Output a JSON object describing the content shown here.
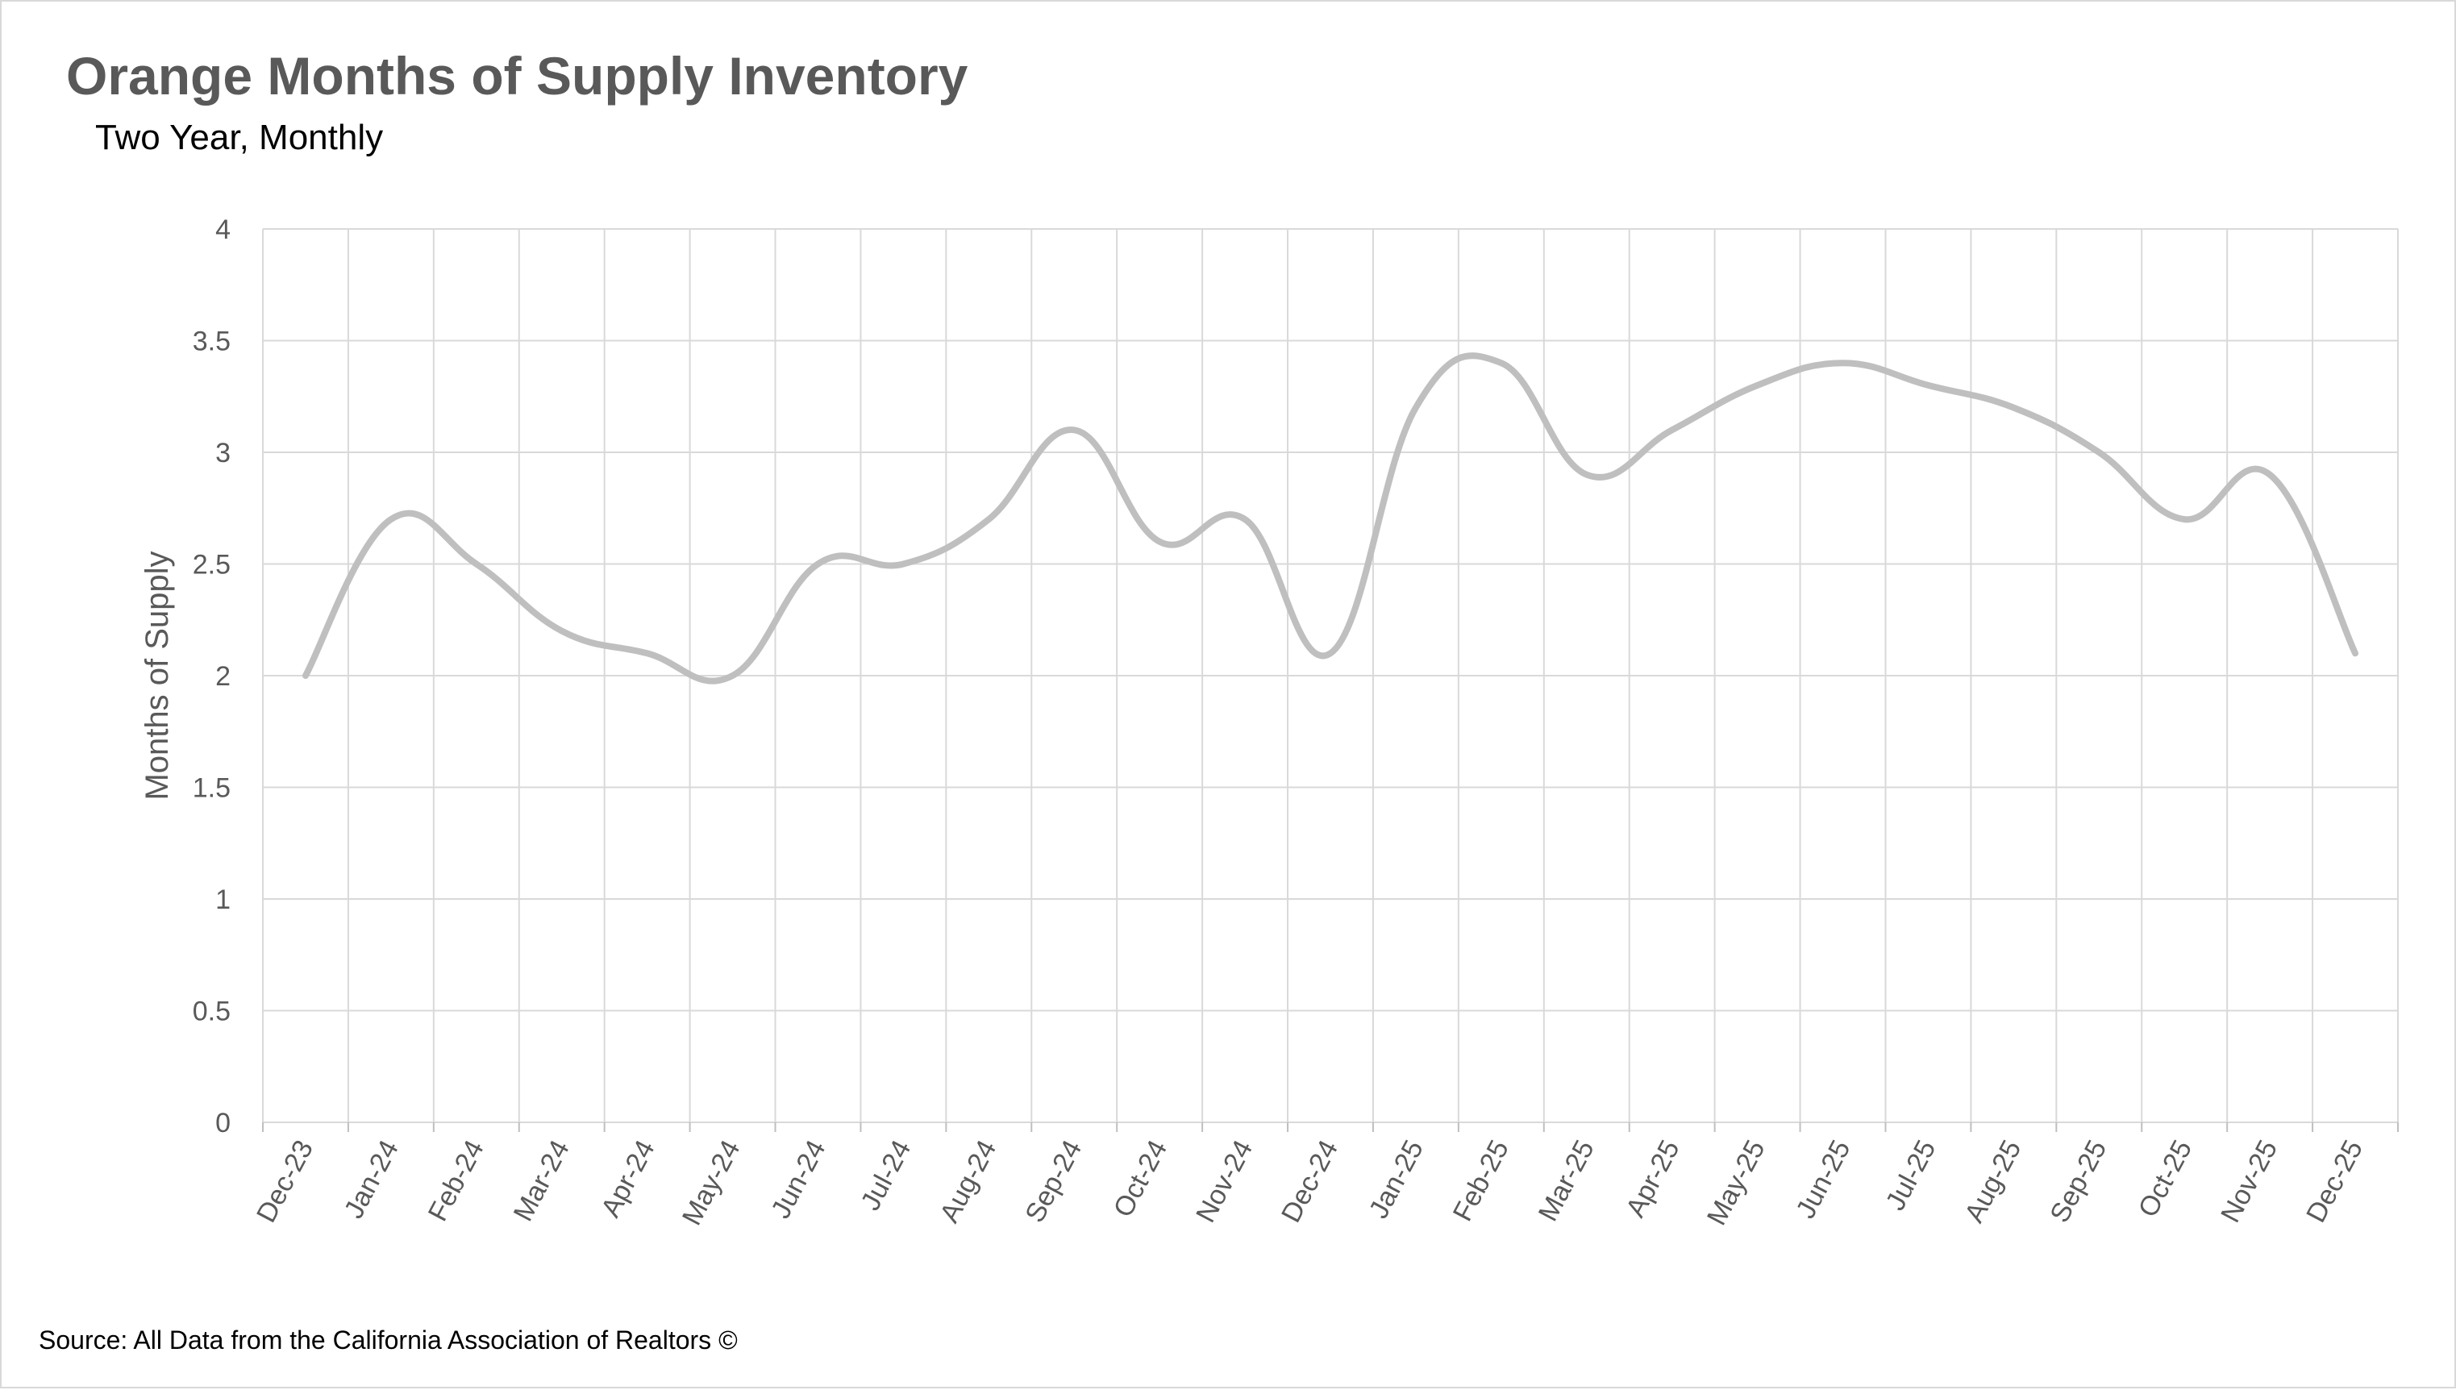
{
  "source_note": "Source: All Data from the California Association of Realtors ©",
  "chart_data": {
    "type": "line",
    "title": "Orange Months of Supply Inventory",
    "subtitle": "Two Year, Monthly",
    "xlabel": "",
    "ylabel": "Months of Supply",
    "ylim": [
      0,
      4
    ],
    "yticks": [
      0,
      0.5,
      1,
      1.5,
      2,
      2.5,
      3,
      3.5,
      4
    ],
    "grid": true,
    "legend": "none",
    "line_color": "#bfbfbf",
    "categories": [
      "Dec-23",
      "Jan-24",
      "Feb-24",
      "Mar-24",
      "Apr-24",
      "May-24",
      "Jun-24",
      "Jul-24",
      "Aug-24",
      "Sep-24",
      "Oct-24",
      "Nov-24",
      "Dec-24",
      "Jan-25",
      "Feb-25",
      "Mar-25",
      "Apr-25",
      "May-25",
      "Jun-25",
      "Jul-25",
      "Aug-25",
      "Sep-25",
      "Oct-25",
      "Nov-25",
      "Dec-25"
    ],
    "values": [
      2.0,
      2.7,
      2.5,
      2.2,
      2.1,
      2.0,
      2.5,
      2.5,
      2.7,
      3.1,
      2.6,
      2.7,
      2.1,
      3.2,
      3.4,
      2.9,
      3.1,
      3.3,
      3.4,
      3.3,
      3.2,
      3.0,
      2.7,
      2.9,
      2.1
    ]
  }
}
